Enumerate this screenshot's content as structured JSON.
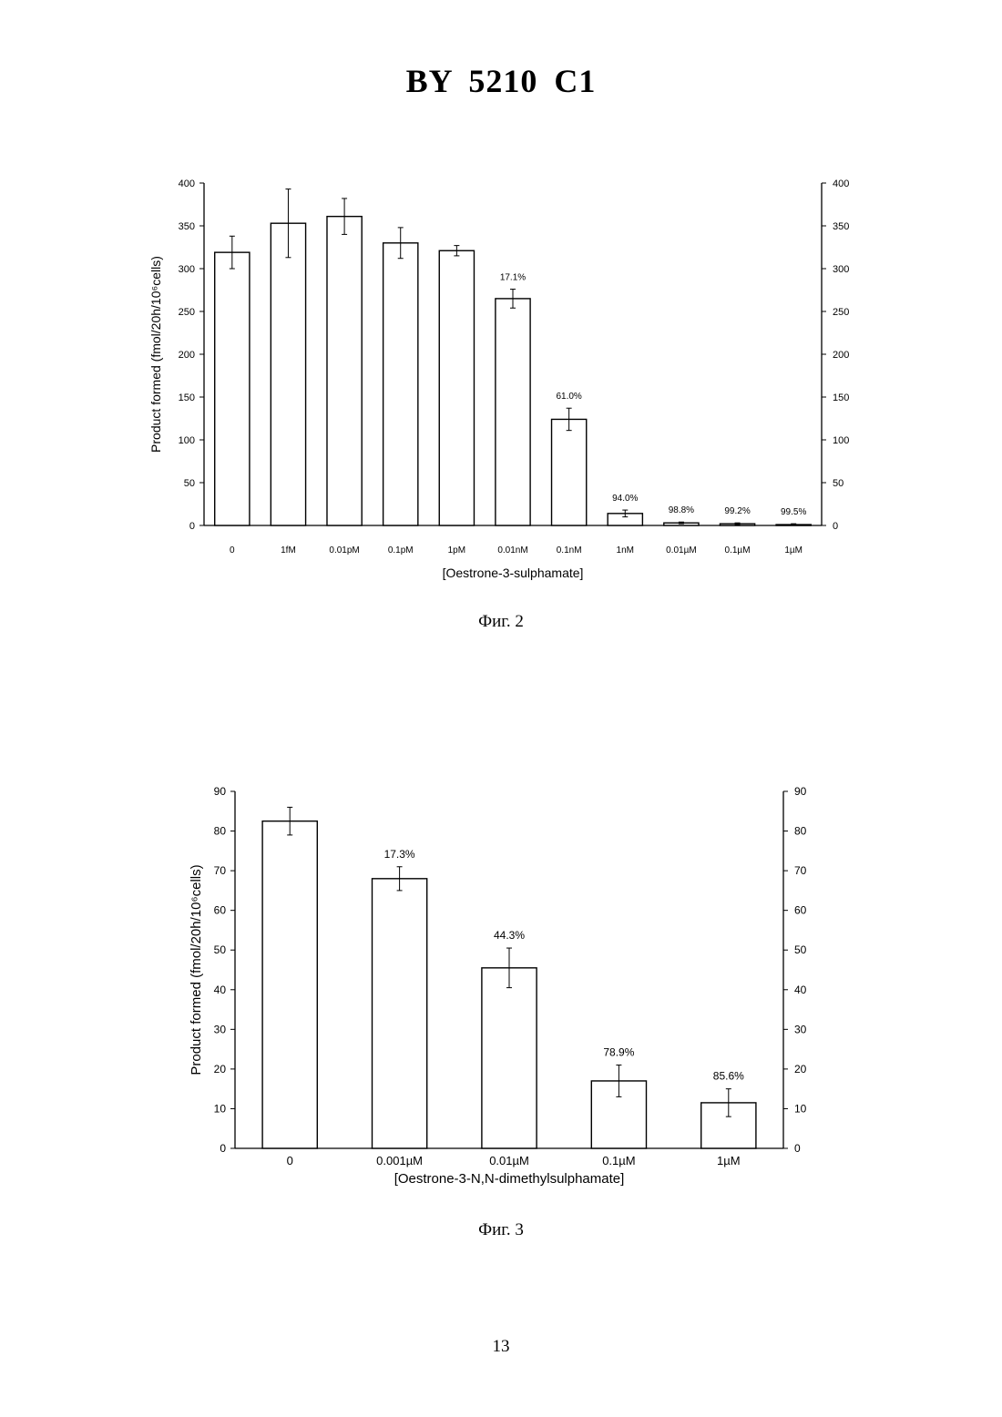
{
  "header": {
    "title": "BY 5210 C1"
  },
  "figures": [
    {
      "caption": "Фиг. 2"
    },
    {
      "caption": "Фиг. 3"
    }
  ],
  "page_number": "13",
  "chart_data": [
    {
      "type": "bar",
      "title": "",
      "ylabel": "Product formed (fmol/20h/10⁶cells)",
      "xlabel": "[Oestrone-3-sulphamate]",
      "ylim": [
        0,
        400
      ],
      "yticks": [
        0,
        50,
        100,
        150,
        200,
        250,
        300,
        350,
        400
      ],
      "secondary_y_axis": true,
      "categories": [
        "0",
        "1fM",
        "0.01pM",
        "0.1pM",
        "1pM",
        "0.01nM",
        "0.1nM",
        "1nM",
        "0.01µM",
        "0.1µM",
        "1µM"
      ],
      "values": [
        319,
        353,
        361,
        330,
        321,
        265,
        124,
        14,
        3,
        2,
        1
      ],
      "errors": [
        19,
        40,
        21,
        18,
        6,
        11,
        13,
        4,
        1,
        1,
        1
      ],
      "annotations": [
        "",
        "",
        "",
        "",
        "",
        "17.1%",
        "61.0%",
        "94.0%",
        "98.8%",
        "99.2%",
        "99.5%"
      ],
      "grid": false
    },
    {
      "type": "bar",
      "title": "",
      "ylabel": "Product formed (fmol/20h/10⁶cells)",
      "xlabel": "[Oestrone-3-N,N-dimethylsulphamate]",
      "ylim": [
        0,
        90
      ],
      "yticks": [
        0,
        10,
        20,
        30,
        40,
        50,
        60,
        70,
        80,
        90
      ],
      "secondary_y_axis": true,
      "categories": [
        "0",
        "0.001µM",
        "0.01µM",
        "0.1µM",
        "1µM"
      ],
      "values": [
        82.5,
        68,
        45.5,
        17,
        11.5
      ],
      "errors": [
        3.5,
        3,
        5,
        4,
        3.5
      ],
      "annotations": [
        "",
        "17.3%",
        "44.3%",
        "78.9%",
        "85.6%"
      ],
      "grid": false
    }
  ]
}
